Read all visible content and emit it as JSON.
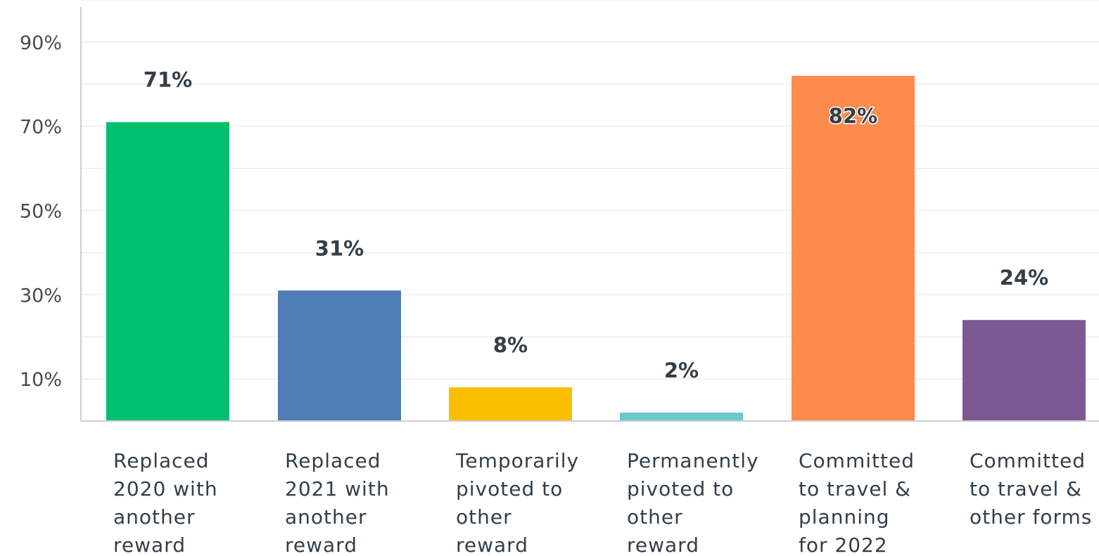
{
  "chart_data": {
    "type": "bar",
    "title": "",
    "xlabel": "",
    "ylabel": "",
    "categories": [
      [
        "Replaced",
        "2020 with",
        "another",
        "reward"
      ],
      [
        "Replaced",
        "2021 with",
        "another",
        "reward"
      ],
      [
        "Temporarily",
        "pivoted to",
        "other",
        "reward"
      ],
      [
        "Permanently",
        "pivoted to",
        "other",
        "reward"
      ],
      [
        "Committed",
        "to travel &",
        "planning",
        "for 2022"
      ],
      [
        "Committed",
        "to travel &",
        "other forms"
      ]
    ],
    "values": [
      71,
      31,
      8,
      2,
      82,
      24
    ],
    "value_labels": [
      "71%",
      "31%",
      "8%",
      "2%",
      "82%",
      "24%"
    ],
    "colors": [
      "#00bf6f",
      "#507cb6",
      "#f9be00",
      "#6bc8cd",
      "#ff8b4f",
      "#7d5994"
    ],
    "y_ticks": [
      {
        "value": 10,
        "label": "10%"
      },
      {
        "value": 30,
        "label": "30%"
      },
      {
        "value": 50,
        "label": "50%"
      },
      {
        "value": 70,
        "label": "70%"
      },
      {
        "value": 90,
        "label": "90%"
      }
    ],
    "ylim": [
      0,
      100
    ],
    "grid": true,
    "grid_step": 10,
    "legend": "none",
    "value_label_inside": [
      false,
      false,
      false,
      false,
      true,
      false
    ]
  }
}
